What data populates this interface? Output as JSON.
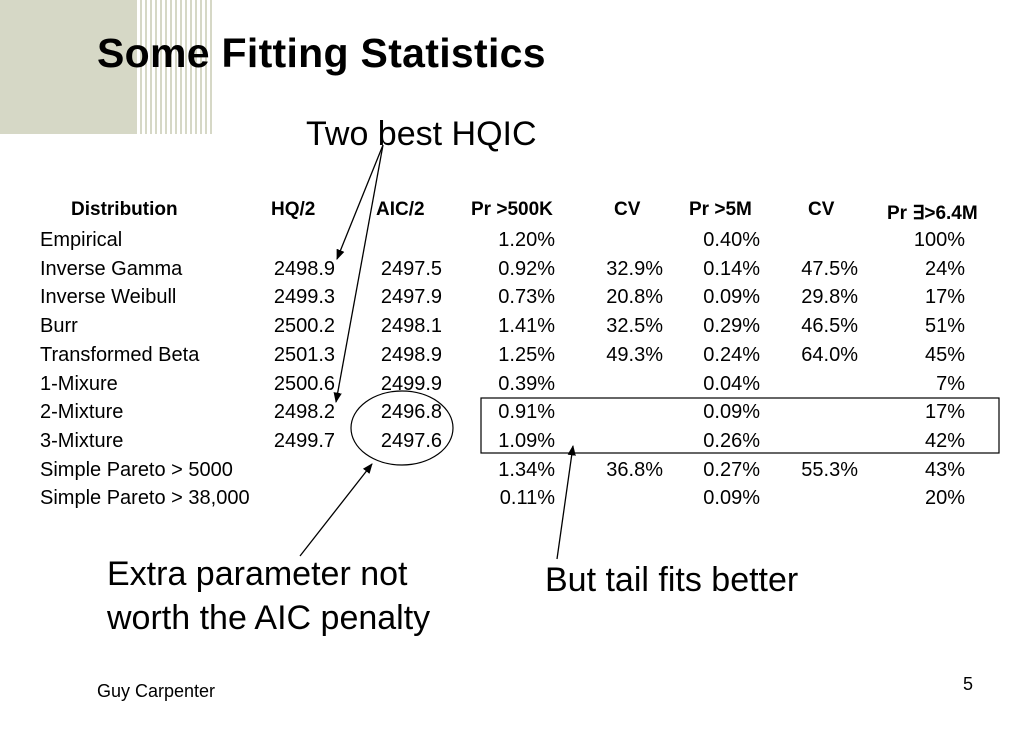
{
  "slide": {
    "title": "Some Fitting Statistics",
    "footer": "Guy Carpenter",
    "page_number": "5"
  },
  "callouts": {
    "hqic": "Two best HQIC",
    "aic_line1": "Extra parameter not",
    "aic_line2": "worth the AIC penalty",
    "tail": "But tail fits better"
  },
  "table": {
    "headers": [
      "Distribution",
      "HQ/2",
      "AIC/2",
      "Pr >500K",
      "CV",
      "Pr >5M",
      "CV",
      "Pr ∃>6.4M"
    ],
    "rows": [
      [
        "Empirical",
        "",
        "",
        "1.20%",
        "",
        "0.40%",
        "",
        "100%"
      ],
      [
        "Inverse Gamma",
        "2498.9",
        "2497.5",
        "0.92%",
        "32.9%",
        "0.14%",
        "47.5%",
        "24%"
      ],
      [
        "Inverse Weibull",
        "2499.3",
        "2497.9",
        "0.73%",
        "20.8%",
        "0.09%",
        "29.8%",
        "17%"
      ],
      [
        "Burr",
        "2500.2",
        "2498.1",
        "1.41%",
        "32.5%",
        "0.29%",
        "46.5%",
        "51%"
      ],
      [
        "Transformed Beta",
        "2501.3",
        "2498.9",
        "1.25%",
        "49.3%",
        "0.24%",
        "64.0%",
        "45%"
      ],
      [
        "1-Mixure",
        "2500.6",
        "2499.9",
        "0.39%",
        "",
        "0.04%",
        "",
        "7%"
      ],
      [
        "2-Mixture",
        "2498.2",
        "2496.8",
        "0.91%",
        "",
        "0.09%",
        "",
        "17%"
      ],
      [
        "3-Mixture",
        "2499.7",
        "2497.6",
        "1.09%",
        "",
        "0.26%",
        "",
        "42%"
      ],
      [
        "Simple Pareto > 5000",
        "",
        "",
        "1.34%",
        "36.8%",
        "0.27%",
        "55.3%",
        "43%"
      ],
      [
        "Simple Pareto > 38,000",
        "",
        "",
        "0.11%",
        "",
        "0.09%",
        "",
        "20%"
      ]
    ]
  }
}
